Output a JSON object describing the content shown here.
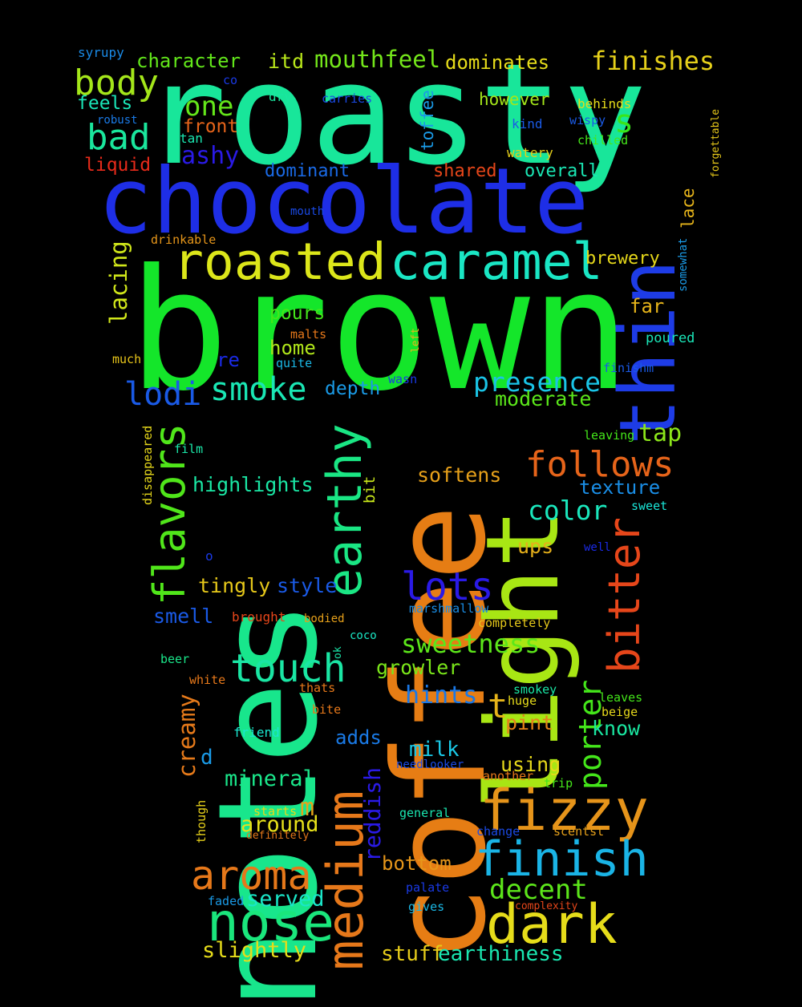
{
  "words": [
    {
      "text": "brown",
      "color": "#14e62a",
      "vertical": false
    },
    {
      "text": "roasty",
      "color": "#18e69a",
      "vertical": false
    },
    {
      "text": "coffee",
      "color": "#e67d14",
      "vertical": true
    },
    {
      "text": "notes",
      "color": "#18e68c",
      "vertical": true
    },
    {
      "text": "light",
      "color": "#a8e614",
      "vertical": true
    },
    {
      "text": "chocolate",
      "color": "#1e2ee6",
      "vertical": false
    },
    {
      "text": "thin",
      "color": "#1e3ce6",
      "vertical": true
    },
    {
      "text": "roasted",
      "color": "#dce61a",
      "vertical": false
    },
    {
      "text": "caramel",
      "color": "#1ae6c4",
      "vertical": false
    },
    {
      "text": "medium",
      "color": "#e6781a",
      "vertical": true
    },
    {
      "text": "bitter",
      "color": "#e6461a",
      "vertical": true
    },
    {
      "text": "earthy",
      "color": "#1ae684",
      "vertical": true
    },
    {
      "text": "fizzy",
      "color": "#e6941a",
      "vertical": false
    },
    {
      "text": "dark",
      "color": "#e6dc1a",
      "vertical": false
    },
    {
      "text": "finish",
      "color": "#1ab4e6",
      "vertical": false
    },
    {
      "text": "nose",
      "color": "#1ae67c",
      "vertical": false
    },
    {
      "text": "aroma",
      "color": "#e6781a",
      "vertical": false
    },
    {
      "text": "flavors",
      "color": "#50e61a",
      "vertical": true
    },
    {
      "text": "follows",
      "color": "#e6641a",
      "vertical": false
    },
    {
      "text": "touch",
      "color": "#1ae6a4",
      "vertical": false
    },
    {
      "text": "lots",
      "color": "#2a1ae6",
      "vertical": false
    },
    {
      "text": "smoke",
      "color": "#1ae6b4",
      "vertical": false
    },
    {
      "text": "body",
      "color": "#a4e61a",
      "vertical": false
    },
    {
      "text": "bad",
      "color": "#1ae69c",
      "vertical": false
    },
    {
      "text": "lodi",
      "color": "#1a5ae6",
      "vertical": false
    },
    {
      "text": "presence",
      "color": "#1ac4e6",
      "vertical": false
    },
    {
      "text": "porter",
      "color": "#44e61a",
      "vertical": true
    },
    {
      "text": "sweetness",
      "color": "#5ce61a",
      "vertical": false
    },
    {
      "text": "decent",
      "color": "#5ce61a",
      "vertical": false
    },
    {
      "text": "reddish",
      "color": "#2a1ae6",
      "vertical": true
    },
    {
      "text": "color",
      "color": "#1ae6bc",
      "vertical": false
    },
    {
      "text": "finishes",
      "color": "#e6d01a",
      "vertical": false
    },
    {
      "text": "mouthfeel",
      "color": "#74e61a",
      "vertical": false
    },
    {
      "text": "one",
      "color": "#64e61a",
      "vertical": false
    },
    {
      "text": "s",
      "color": "#38e61a",
      "vertical": false
    },
    {
      "text": "t",
      "color": "#e6b41a",
      "vertical": false
    },
    {
      "text": "m",
      "color": "#e6a41a",
      "vertical": false
    },
    {
      "text": "d",
      "color": "#1a9ae6",
      "vertical": false
    },
    {
      "text": "hints",
      "color": "#1a78e6",
      "vertical": false
    },
    {
      "text": "ashy",
      "color": "#2a1ae6",
      "vertical": false
    },
    {
      "text": "highlights",
      "color": "#1ae6a4",
      "vertical": false
    },
    {
      "text": "creamy",
      "color": "#e67a1a",
      "vertical": true
    },
    {
      "text": "served",
      "color": "#1ae6c8",
      "vertical": false
    },
    {
      "text": "around",
      "color": "#e6e01a",
      "vertical": false
    },
    {
      "text": "mineral",
      "color": "#1ae68a",
      "vertical": false
    },
    {
      "text": "slightly",
      "color": "#e6dc1a",
      "vertical": false
    },
    {
      "text": "stuff",
      "color": "#e6cc1a",
      "vertical": false
    },
    {
      "text": "earthiness",
      "color": "#1ae6b0",
      "vertical": false
    },
    {
      "text": "bottom",
      "color": "#e6961a",
      "vertical": false
    },
    {
      "text": "tap",
      "color": "#8ce61a",
      "vertical": false
    },
    {
      "text": "growler",
      "color": "#7ae61a",
      "vertical": false
    },
    {
      "text": "milk",
      "color": "#1ac8e6",
      "vertical": false
    },
    {
      "text": "using",
      "color": "#e6d81a",
      "vertical": false
    },
    {
      "text": "adds",
      "color": "#1a7ae6",
      "vertical": false
    },
    {
      "text": "know",
      "color": "#1ae6a0",
      "vertical": false
    },
    {
      "text": "pint",
      "color": "#e6821a",
      "vertical": false
    },
    {
      "text": "softens",
      "color": "#e6a01a",
      "vertical": false
    },
    {
      "text": "moderate",
      "color": "#5ae61a",
      "vertical": false
    },
    {
      "text": "texture",
      "color": "#1a8ee6",
      "vertical": false
    },
    {
      "text": "ups",
      "color": "#e6b01a",
      "vertical": false
    },
    {
      "text": "style",
      "color": "#1a5ae6",
      "vertical": false
    },
    {
      "text": "tingly",
      "color": "#e6c81a",
      "vertical": false
    },
    {
      "text": "smell",
      "color": "#1a5ae6",
      "vertical": false
    },
    {
      "text": "depth",
      "color": "#1a9ae6",
      "vertical": false
    },
    {
      "text": "home",
      "color": "#b0e61a",
      "vertical": false
    },
    {
      "text": "re",
      "color": "#1a2ae6",
      "vertical": false
    },
    {
      "text": "pours",
      "color": "#44e61a",
      "vertical": false
    },
    {
      "text": "far",
      "color": "#e6b41a",
      "vertical": false
    },
    {
      "text": "brewery",
      "color": "#e6d81a",
      "vertical": false
    },
    {
      "text": "lacing",
      "color": "#d0e61a",
      "vertical": true
    },
    {
      "text": "character",
      "color": "#62e61a",
      "vertical": false
    },
    {
      "text": "itd",
      "color": "#b8e61a",
      "vertical": false
    },
    {
      "text": "dominates",
      "color": "#e6dc1a",
      "vertical": false
    },
    {
      "text": "feels",
      "color": "#1ae6b8",
      "vertical": false
    },
    {
      "text": "front",
      "color": "#e6641a",
      "vertical": false
    },
    {
      "text": "liquid",
      "color": "#e62a1a",
      "vertical": false
    },
    {
      "text": "dominant",
      "color": "#1a6ae6",
      "vertical": false
    },
    {
      "text": "shared",
      "color": "#e6461a",
      "vertical": false
    },
    {
      "text": "overall",
      "color": "#1ae6b4",
      "vertical": false
    },
    {
      "text": "toffee",
      "color": "#1a9ae6",
      "vertical": true
    },
    {
      "text": "however",
      "color": "#a4e61a",
      "vertical": false
    },
    {
      "text": "lace",
      "color": "#e6b41a",
      "vertical": true
    },
    {
      "text": "bit",
      "color": "#c8e61a",
      "vertical": true
    },
    {
      "text": "syrupy",
      "color": "#1a8ae6",
      "vertical": false
    },
    {
      "text": "co",
      "color": "#1a3ae6",
      "vertical": false
    },
    {
      "text": "dry",
      "color": "#1ae6a0",
      "vertical": false
    },
    {
      "text": "carries",
      "color": "#1a4ae6",
      "vertical": false
    },
    {
      "text": "behinds",
      "color": "#e6dc1a",
      "vertical": false
    },
    {
      "text": "robust",
      "color": "#1a7ae6",
      "vertical": false
    },
    {
      "text": "kind",
      "color": "#1a5ae6",
      "vertical": false
    },
    {
      "text": "wispy",
      "color": "#1a5ae6",
      "vertical": false
    },
    {
      "text": "tan",
      "color": "#1ae6b0",
      "vertical": false
    },
    {
      "text": "chilled",
      "color": "#44e61a",
      "vertical": false
    },
    {
      "text": "watery",
      "color": "#e6d01a",
      "vertical": false
    },
    {
      "text": "forgettable",
      "color": "#e6c81a",
      "vertical": true
    },
    {
      "text": "mouth",
      "color": "#1a4ae6",
      "vertical": false
    },
    {
      "text": "drinkable",
      "color": "#e6961a",
      "vertical": false
    },
    {
      "text": "somewhat",
      "color": "#1a9ae6",
      "vertical": true
    },
    {
      "text": "malts",
      "color": "#e6781a",
      "vertical": false
    },
    {
      "text": "left",
      "color": "#e6b41a",
      "vertical": true
    },
    {
      "text": "poured",
      "color": "#1ae6b8",
      "vertical": false
    },
    {
      "text": "much",
      "color": "#e6c41a",
      "vertical": false
    },
    {
      "text": "quite",
      "color": "#1ab8e6",
      "vertical": false
    },
    {
      "text": "wasn",
      "color": "#1a3ae6",
      "vertical": false
    },
    {
      "text": "finishm",
      "color": "#1a5ae6",
      "vertical": false
    },
    {
      "text": "disappeared",
      "color": "#e6d81a",
      "vertical": true
    },
    {
      "text": "film",
      "color": "#1ae6a8",
      "vertical": false
    },
    {
      "text": "leaving",
      "color": "#44e61a",
      "vertical": false
    },
    {
      "text": "sweet",
      "color": "#1ae6d8",
      "vertical": false
    },
    {
      "text": "o",
      "color": "#1a3ae6",
      "vertical": false
    },
    {
      "text": "well",
      "color": "#1a2ae6",
      "vertical": false
    },
    {
      "text": "marshmallow",
      "color": "#1a8ee6",
      "vertical": false
    },
    {
      "text": "brought",
      "color": "#e6461a",
      "vertical": false
    },
    {
      "text": "bodied",
      "color": "#e6a01a",
      "vertical": false
    },
    {
      "text": "completely",
      "color": "#e6c81a",
      "vertical": false
    },
    {
      "text": "ok",
      "color": "#1ae6a8",
      "vertical": true
    },
    {
      "text": "coco",
      "color": "#1ae6c4",
      "vertical": false
    },
    {
      "text": "beer",
      "color": "#1ae68a",
      "vertical": false
    },
    {
      "text": "white",
      "color": "#e6781a",
      "vertical": false
    },
    {
      "text": "thats",
      "color": "#e6781a",
      "vertical": false
    },
    {
      "text": "smokey",
      "color": "#1ae6a4",
      "vertical": false
    },
    {
      "text": "huge",
      "color": "#e6dc1a",
      "vertical": false
    },
    {
      "text": "leaves",
      "color": "#44e61a",
      "vertical": false
    },
    {
      "text": "beige",
      "color": "#e6d81a",
      "vertical": false
    },
    {
      "text": "bite",
      "color": "#e6781a",
      "vertical": false
    },
    {
      "text": "friend",
      "color": "#1ae6d0",
      "vertical": false
    },
    {
      "text": "needlooker",
      "color": "#1a4ae6",
      "vertical": false
    },
    {
      "text": "another",
      "color": "#e6781a",
      "vertical": false
    },
    {
      "text": "trip",
      "color": "#44e61a",
      "vertical": false
    },
    {
      "text": "though",
      "color": "#e6d01a",
      "vertical": true
    },
    {
      "text": "starts",
      "color": "#e6d81a",
      "vertical": false
    },
    {
      "text": "definitely",
      "color": "#e6781a",
      "vertical": false
    },
    {
      "text": "general",
      "color": "#1ae6b0",
      "vertical": false
    },
    {
      "text": "change",
      "color": "#1a4ae6",
      "vertical": false
    },
    {
      "text": "scentst",
      "color": "#e6a01a",
      "vertical": false
    },
    {
      "text": "palate",
      "color": "#1a3ae6",
      "vertical": false
    },
    {
      "text": "faded",
      "color": "#1a9ae6",
      "vertical": false
    },
    {
      "text": "gives",
      "color": "#1ab8e6",
      "vertical": false
    },
    {
      "text": "complexity",
      "color": "#e6461a",
      "vertical": false
    }
  ]
}
